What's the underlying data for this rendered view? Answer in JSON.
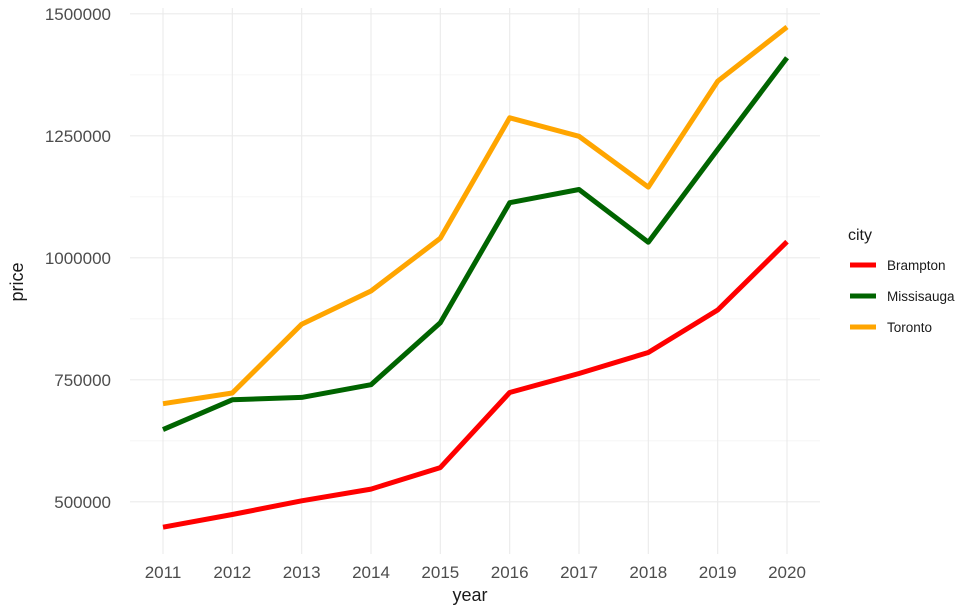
{
  "chart_data": {
    "type": "line",
    "xlabel": "year",
    "ylabel": "price",
    "x": [
      "2011",
      "2012",
      "2013",
      "2014",
      "2015",
      "2016",
      "2017",
      "2018",
      "2019",
      "2020"
    ],
    "yticks": [
      "500000",
      "750000",
      "1000000",
      "1250000",
      "1500000"
    ],
    "ylim": [
      393000,
      1512000
    ],
    "grid": true,
    "legend_title": "city",
    "legend_position": "right",
    "series": [
      {
        "name": "Brampton",
        "color": "#ff0000",
        "values": [
          448000,
          474000,
          502000,
          526000,
          570000,
          724000,
          763000,
          806000,
          893000,
          1033000
        ]
      },
      {
        "name": "Missisauga",
        "color": "#006400",
        "values": [
          648000,
          709000,
          714000,
          740000,
          867000,
          1113000,
          1140000,
          1032000,
          1222000,
          1410000
        ]
      },
      {
        "name": "Toronto",
        "color": "#ffa500",
        "values": [
          701000,
          723000,
          864000,
          932000,
          1040000,
          1287000,
          1249000,
          1145000,
          1362000,
          1473000
        ]
      }
    ]
  }
}
